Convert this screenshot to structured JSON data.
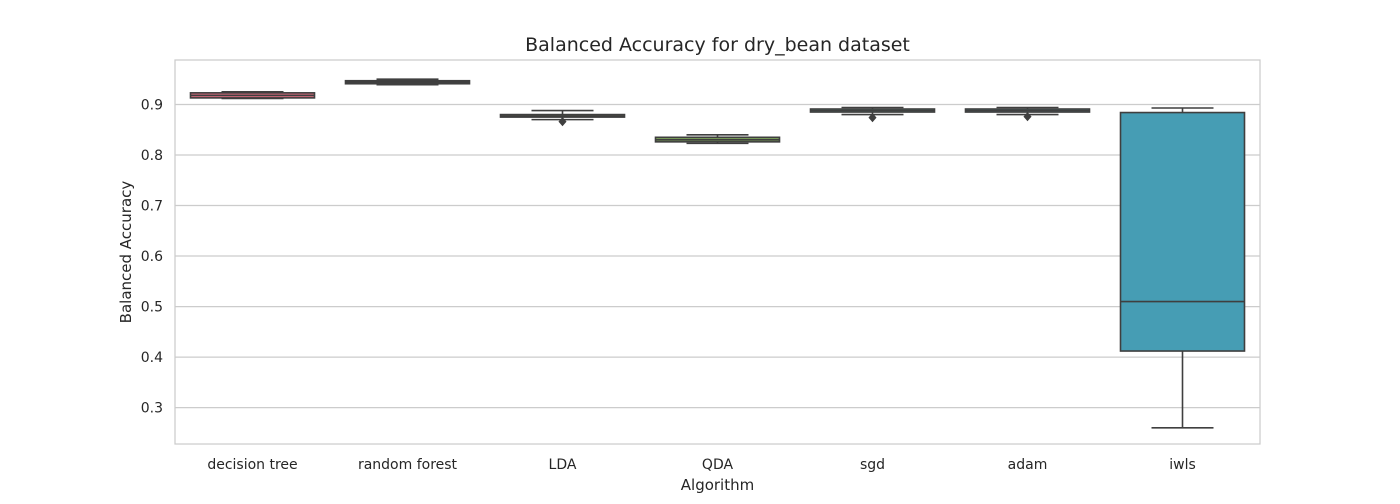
{
  "chart_data": {
    "type": "box",
    "title": "Balanced Accuracy for dry_bean dataset",
    "xlabel": "Algorithm",
    "ylabel": "Balanced Accuracy",
    "ylim": [
      0.228,
      0.988
    ],
    "yticks": [
      "0.3",
      "0.4",
      "0.5",
      "0.6",
      "0.7",
      "0.8",
      "0.9"
    ],
    "grid": "y",
    "categories": [
      "decision tree",
      "random forest",
      "LDA",
      "QDA",
      "sgd",
      "adam",
      "iwls"
    ],
    "boxes": [
      {
        "name": "decision tree",
        "whisker_low": 0.912,
        "q1": 0.913,
        "median": 0.918,
        "q3": 0.923,
        "whisker_high": 0.925,
        "outliers": [],
        "color": "#d1697b"
      },
      {
        "name": "random forest",
        "whisker_low": 0.939,
        "q1": 0.941,
        "median": 0.944,
        "q3": 0.947,
        "whisker_high": 0.95,
        "outliers": [],
        "color": "#b8867b"
      },
      {
        "name": "LDA",
        "whisker_low": 0.87,
        "q1": 0.875,
        "median": 0.877,
        "q3": 0.88,
        "whisker_high": 0.888,
        "outliers": [
          0.866
        ],
        "color": "#9a9a5c"
      },
      {
        "name": "QDA",
        "whisker_low": 0.823,
        "q1": 0.826,
        "median": 0.83,
        "q3": 0.835,
        "whisker_high": 0.84,
        "outliers": [],
        "color": "#7da35a"
      },
      {
        "name": "sgd",
        "whisker_low": 0.88,
        "q1": 0.885,
        "median": 0.888,
        "q3": 0.891,
        "whisker_high": 0.894,
        "outliers": [
          0.874
        ],
        "color": "#5ba690"
      },
      {
        "name": "adam",
        "whisker_low": 0.88,
        "q1": 0.885,
        "median": 0.888,
        "q3": 0.891,
        "whisker_high": 0.894,
        "outliers": [
          0.876
        ],
        "color": "#50a3a8"
      },
      {
        "name": "iwls",
        "whisker_low": 0.26,
        "q1": 0.412,
        "median": 0.51,
        "q3": 0.884,
        "whisker_high": 0.893,
        "outliers": [],
        "color": "#469db4"
      }
    ]
  }
}
